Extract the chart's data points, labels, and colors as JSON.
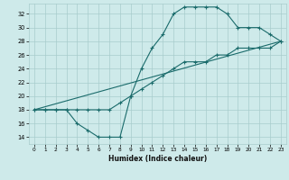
{
  "xlabel": "Humidex (Indice chaleur)",
  "ylabel": "",
  "background_color": "#ceeaea",
  "line_color": "#1a6b6b",
  "grid_color": "#a8cccc",
  "xlim": [
    -0.5,
    23.5
  ],
  "ylim": [
    13,
    33.5
  ],
  "yticks": [
    14,
    16,
    18,
    20,
    22,
    24,
    26,
    28,
    30,
    32
  ],
  "xticks": [
    0,
    1,
    2,
    3,
    4,
    5,
    6,
    7,
    8,
    9,
    10,
    11,
    12,
    13,
    14,
    15,
    16,
    17,
    18,
    19,
    20,
    21,
    22,
    23
  ],
  "line1_x": [
    0,
    1,
    2,
    3,
    4,
    5,
    6,
    7,
    8,
    9,
    10,
    11,
    12,
    13,
    14,
    15,
    16,
    17,
    18,
    19,
    20,
    21,
    22,
    23
  ],
  "line1_y": [
    18,
    18,
    18,
    18,
    16,
    15,
    14,
    14,
    14,
    20,
    24,
    27,
    29,
    32,
    33,
    33,
    33,
    33,
    32,
    30,
    30,
    30,
    29,
    28
  ],
  "line2_x": [
    0,
    1,
    2,
    3,
    4,
    5,
    6,
    7,
    8,
    9,
    10,
    11,
    12,
    13,
    14,
    15,
    16,
    17,
    18,
    19,
    20,
    21,
    22,
    23
  ],
  "line2_y": [
    18,
    18,
    18,
    18,
    18,
    18,
    18,
    18,
    19,
    20,
    21,
    22,
    23,
    24,
    25,
    25,
    25,
    26,
    26,
    27,
    27,
    27,
    27,
    28
  ],
  "line3_x": [
    0,
    23
  ],
  "line3_y": [
    18,
    28
  ]
}
